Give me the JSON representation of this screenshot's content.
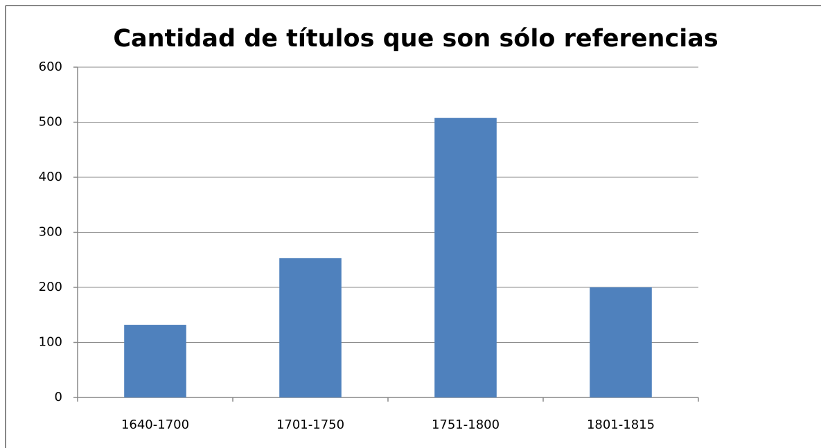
{
  "chart_data": {
    "type": "bar",
    "title": "Cantidad de títulos que son sólo referencias",
    "categories": [
      "1640-1700",
      "1701-1750",
      "1751-1800",
      "1801-1815"
    ],
    "values": [
      132,
      253,
      508,
      200
    ],
    "color": "#4f81bd",
    "ylim": [
      0,
      600
    ],
    "yticks": [
      0,
      100,
      200,
      300,
      400,
      500,
      600
    ],
    "grid": true
  }
}
